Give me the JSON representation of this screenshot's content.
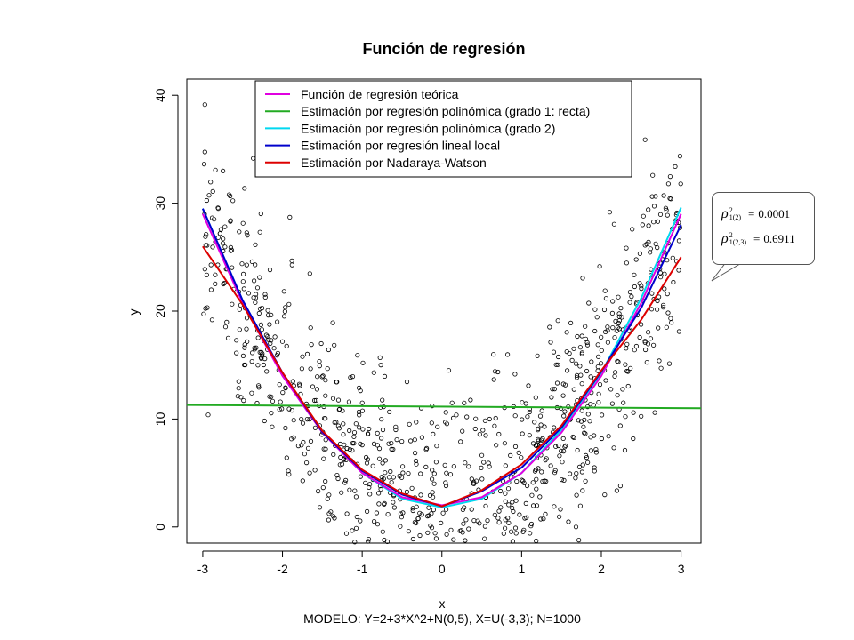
{
  "chart_data": {
    "type": "scatter",
    "title": "Función de regresión",
    "xlabel": "x",
    "ylabel": "y",
    "caption": "MODELO: Y=2+3*X^2+N(0,5), X=U(-3,3);  N=1000",
    "xlim": [
      -3.2,
      3.25
    ],
    "ylim": [
      -1.5,
      41.5
    ],
    "xticks": [
      -3,
      -2,
      -1,
      0,
      1,
      2,
      3
    ],
    "yticks": [
      0,
      10,
      20,
      30,
      40
    ],
    "xtick_labels": [
      "-3",
      "-2",
      "-1",
      "0",
      "1",
      "2",
      "3"
    ],
    "ytick_labels": [
      "0",
      "10",
      "20",
      "30",
      "40"
    ],
    "grid": false,
    "legend_position": "top-center",
    "n_points": 1000,
    "series": [
      {
        "name": "Función de regresión teórica",
        "color": "#e000e0",
        "x": [
          -3,
          -2.5,
          -2,
          -1.5,
          -1,
          -0.5,
          0,
          0.5,
          1,
          1.5,
          2,
          2.5,
          3
        ],
        "y": [
          29,
          20.75,
          14,
          8.75,
          5,
          2.75,
          2,
          2.75,
          5,
          8.75,
          14,
          20.75,
          29
        ]
      },
      {
        "name": "Estimación por regresión polinómica (grado 1: recta)",
        "color": "#22aa22",
        "x": [
          -3.2,
          3.25
        ],
        "y": [
          11.3,
          11.0
        ]
      },
      {
        "name": "Estimación por regresión polinómica (grado 2)",
        "color": "#00d8f0",
        "x": [
          -3,
          -2.5,
          -2,
          -1.5,
          -1,
          -0.5,
          0,
          0.5,
          1,
          1.5,
          2,
          2.5,
          3
        ],
        "y": [
          29.5,
          21.0,
          14.2,
          8.9,
          5.0,
          2.6,
          1.8,
          2.6,
          5.0,
          9.0,
          14.3,
          21.2,
          29.6
        ]
      },
      {
        "name": "Estimación por regresión lineal local",
        "color": "#0000cc",
        "x": [
          -3,
          -2.5,
          -2,
          -1.5,
          -1,
          -0.5,
          0,
          0.5,
          1,
          1.5,
          2,
          2.5,
          3
        ],
        "y": [
          29.5,
          21.0,
          14.3,
          8.8,
          5.2,
          3.0,
          1.9,
          3.3,
          5.5,
          9.2,
          14.4,
          20.3,
          28.0
        ]
      },
      {
        "name": "Estimación por Nadaraya-Watson",
        "color": "#dd0000",
        "x": [
          -3,
          -2.5,
          -2,
          -1.5,
          -1,
          -0.5,
          0,
          0.5,
          1,
          1.5,
          2,
          2.5,
          3
        ],
        "y": [
          26.0,
          20.6,
          14.3,
          8.9,
          5.3,
          3.1,
          1.9,
          3.4,
          5.8,
          9.4,
          14.5,
          19.2,
          25.0
        ]
      }
    ],
    "annotation": {
      "lines": [
        {
          "sub": "1(2)",
          "value": "0.0001"
        },
        {
          "sub": "1(2,3)",
          "value": "0.6911"
        }
      ],
      "symbol": "ρ",
      "sup": "2",
      "equals": "="
    }
  }
}
